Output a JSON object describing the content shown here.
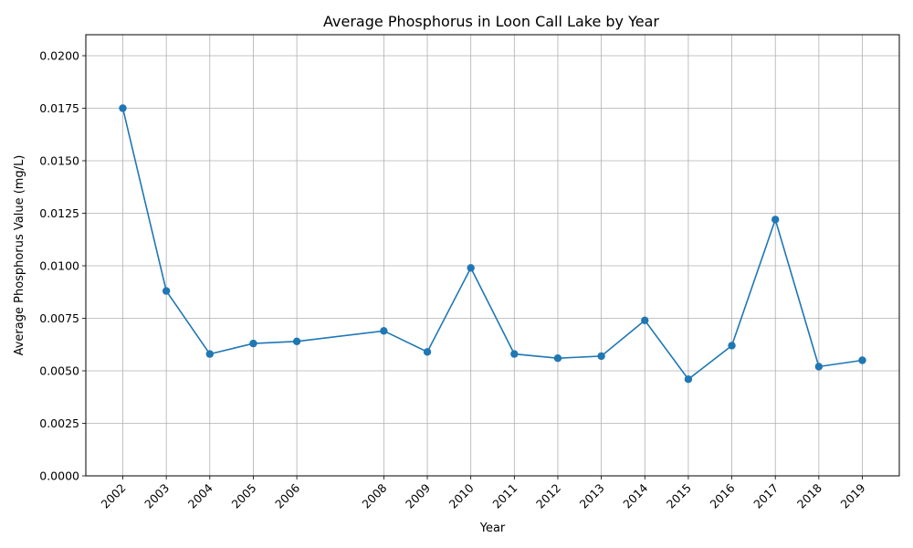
{
  "chart_data": {
    "type": "line",
    "title": "Average Phosphorus in Loon Call Lake by Year",
    "xlabel": "Year",
    "ylabel": "Average Phosphorus Value (mg/L)",
    "x": [
      2002,
      2003,
      2004,
      2005,
      2006,
      2008,
      2009,
      2010,
      2011,
      2012,
      2013,
      2014,
      2015,
      2016,
      2017,
      2018,
      2019
    ],
    "y": [
      0.0175,
      0.0088,
      0.0058,
      0.0063,
      0.0064,
      0.0069,
      0.0059,
      0.0099,
      0.0058,
      0.0056,
      0.0057,
      0.0074,
      0.0046,
      0.0062,
      0.0122,
      0.0052,
      0.0055
    ],
    "x_tick_labels": [
      "2002",
      "2003",
      "2004",
      "2005",
      "2006",
      "2008",
      "2009",
      "2010",
      "2011",
      "2012",
      "2013",
      "2014",
      "2015",
      "2016",
      "2017",
      "2018",
      "2019"
    ],
    "y_ticks": [
      0.0,
      0.0025,
      0.005,
      0.0075,
      0.01,
      0.0125,
      0.015,
      0.0175,
      0.02
    ],
    "y_tick_labels": [
      "0.0000",
      "0.0025",
      "0.0050",
      "0.0075",
      "0.0100",
      "0.0125",
      "0.0150",
      "0.0175",
      "0.0200"
    ],
    "xlim": [
      2001.15,
      2019.85
    ],
    "ylim": [
      0.0,
      0.021
    ],
    "grid": true,
    "line_color": "#1f77b4",
    "marker": "circle"
  }
}
